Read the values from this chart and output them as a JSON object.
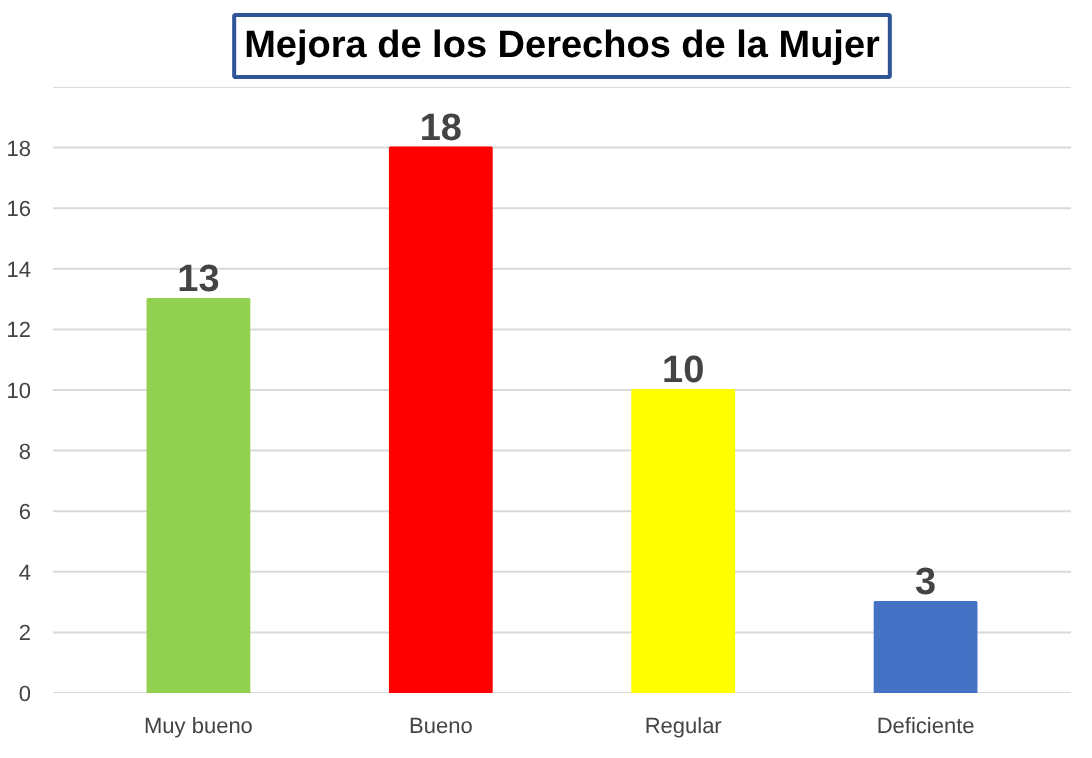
{
  "chart_data": {
    "type": "bar",
    "title": "Mejora de los Derechos de la Mujer",
    "categories": [
      "Muy bueno",
      "Bueno",
      "Regular",
      "Deficiente"
    ],
    "values": [
      13,
      18,
      10,
      3
    ],
    "colors": [
      "#92d050",
      "#ff0000",
      "#ffff00",
      "#4472c4"
    ],
    "ylim": [
      0,
      20
    ],
    "yticks": [
      0,
      2,
      4,
      6,
      8,
      10,
      12,
      14,
      16,
      18,
      {
        "value": 20,
        "label": null
      }
    ],
    "grid": "y",
    "data_labels": true
  }
}
